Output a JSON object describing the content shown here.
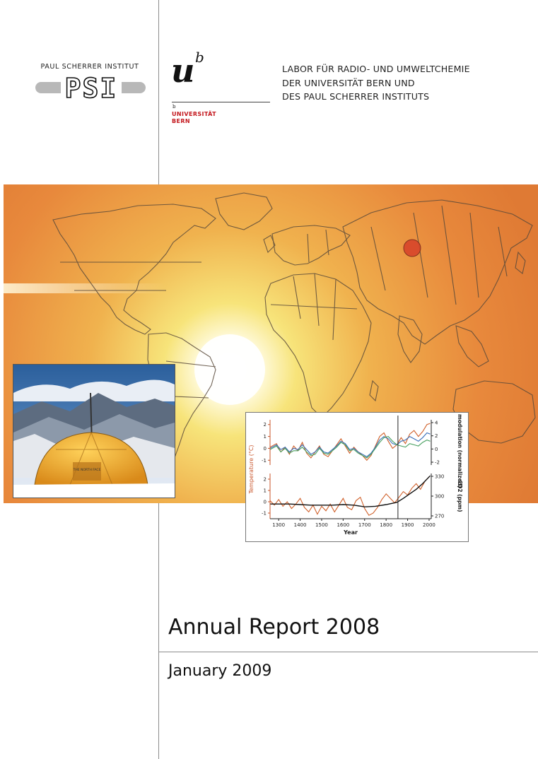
{
  "logos": {
    "psi_name": "PAUL SCHERRER INSTITUT",
    "psi_letters": "PSI",
    "unibern_symbol": "u",
    "unibern_superscript": "b",
    "unibern_small_b": "b",
    "unibern_line1": "UNIVERSITÄT",
    "unibern_line2": "BERN"
  },
  "lab_header": {
    "lines": [
      "LABOR FÜR RADIO- UND UMWELTCHEMIE",
      "DER UNIVERSITÄT BERN UND",
      "DES PAUL SCHERRER INSTITUTS"
    ]
  },
  "cover": {
    "title": "Annual Report 2008",
    "date": "January 2009"
  },
  "photo": {
    "tent_brand": "THE NORTH FACE"
  },
  "colors": {
    "banner_orange": "#e8893c",
    "sun_glow": "#fff6c0",
    "site_marker": "#d8452a",
    "temperature_axis": "#c8542a",
    "series_orange": "#d0602a",
    "series_blue": "#3a6fb8",
    "series_green": "#48a060",
    "series_black": "#111111",
    "uni_red": "#c3161c"
  },
  "chart_data": {
    "type": "line",
    "xlabel": "Year",
    "x_ticks": [
      "1300",
      "1400",
      "1500",
      "1600",
      "1700",
      "1800",
      "1900",
      "2000"
    ],
    "xlim": [
      1260,
      2010
    ],
    "marker_line_year": 1855,
    "top_panel": {
      "left_ticks": [
        "2",
        "1",
        "0",
        "-1"
      ],
      "right_ticks": [
        "4",
        "2",
        "0",
        "-2"
      ],
      "right_label": "Solar modulation (normalized)",
      "ylim": [
        -1.4,
        2.4
      ],
      "series": [
        {
          "color_key": "series_orange",
          "x": [
            1260,
            1290,
            1310,
            1330,
            1350,
            1370,
            1390,
            1410,
            1430,
            1450,
            1470,
            1490,
            1510,
            1530,
            1550,
            1570,
            1590,
            1610,
            1630,
            1650,
            1670,
            1690,
            1710,
            1730,
            1750,
            1770,
            1790,
            1810,
            1830,
            1850,
            1870,
            1890,
            1910,
            1930,
            1950,
            1970,
            1990,
            2005
          ],
          "y": [
            0.1,
            0.4,
            -0.3,
            0.1,
            -0.5,
            0.2,
            -0.2,
            0.5,
            -0.4,
            -0.8,
            -0.3,
            0.2,
            -0.5,
            -0.7,
            -0.2,
            0.3,
            0.8,
            0.2,
            -0.4,
            0.1,
            -0.3,
            -0.6,
            -1.0,
            -0.6,
            0.2,
            1.0,
            1.3,
            0.6,
            0.0,
            0.3,
            0.9,
            0.4,
            1.2,
            1.5,
            1.0,
            1.4,
            2.0,
            2.1
          ]
        },
        {
          "color_key": "series_blue",
          "x": [
            1260,
            1290,
            1310,
            1330,
            1350,
            1370,
            1390,
            1410,
            1430,
            1450,
            1470,
            1490,
            1510,
            1530,
            1550,
            1570,
            1590,
            1610,
            1630,
            1650,
            1670,
            1690,
            1710,
            1730,
            1750,
            1770,
            1790,
            1810,
            1830,
            1850,
            1870,
            1890,
            1910,
            1930,
            1950,
            1970,
            1990,
            2005
          ],
          "y": [
            0.0,
            0.3,
            -0.1,
            0.1,
            -0.3,
            0.0,
            -0.1,
            0.3,
            -0.1,
            -0.5,
            -0.3,
            0.1,
            -0.3,
            -0.4,
            -0.1,
            0.2,
            0.6,
            0.4,
            -0.1,
            0.0,
            -0.3,
            -0.5,
            -0.7,
            -0.4,
            0.1,
            0.7,
            1.0,
            0.8,
            0.4,
            0.3,
            0.6,
            0.7,
            1.0,
            0.8,
            0.6,
            0.9,
            1.3,
            1.2
          ]
        },
        {
          "color_key": "series_green",
          "x": [
            1260,
            1290,
            1310,
            1330,
            1350,
            1370,
            1390,
            1410,
            1430,
            1450,
            1470,
            1490,
            1510,
            1530,
            1550,
            1570,
            1590,
            1610,
            1630,
            1650,
            1670,
            1690,
            1710,
            1730,
            1750,
            1770,
            1790,
            1810,
            1830,
            1850,
            1870,
            1890,
            1910,
            1930,
            1950,
            1970,
            1990,
            2005
          ],
          "y": [
            -0.1,
            0.2,
            -0.3,
            0.0,
            -0.4,
            -0.2,
            -0.2,
            0.1,
            -0.3,
            -0.6,
            -0.5,
            0.0,
            -0.4,
            -0.5,
            -0.2,
            0.1,
            0.5,
            0.3,
            -0.2,
            -0.1,
            -0.4,
            -0.6,
            -0.8,
            -0.5,
            0.0,
            0.5,
            0.9,
            1.0,
            0.6,
            0.3,
            0.2,
            0.1,
            0.4,
            0.3,
            0.2,
            0.5,
            0.7,
            0.6
          ]
        }
      ]
    },
    "bottom_panel": {
      "left_ticks": [
        "2",
        "1",
        "0",
        "-1"
      ],
      "right_ticks": [
        "330",
        "300",
        "270"
      ],
      "right_label": "CO2 (ppm)",
      "ylim": [
        -1.5,
        2.5
      ],
      "series": [
        {
          "color_key": "series_orange",
          "x": [
            1260,
            1280,
            1300,
            1320,
            1340,
            1360,
            1380,
            1400,
            1420,
            1440,
            1460,
            1480,
            1500,
            1520,
            1540,
            1560,
            1580,
            1600,
            1620,
            1640,
            1660,
            1680,
            1700,
            1720,
            1740,
            1760,
            1780,
            1800,
            1820,
            1840,
            1860,
            1880,
            1900,
            1920,
            1940,
            1960,
            1980,
            2000
          ],
          "y": [
            0.1,
            -0.3,
            0.2,
            -0.4,
            0.0,
            -0.6,
            -0.2,
            0.3,
            -0.5,
            -0.9,
            -0.3,
            -1.1,
            -0.4,
            -0.8,
            -0.2,
            -0.9,
            -0.3,
            0.3,
            -0.5,
            -0.7,
            0.1,
            0.4,
            -0.6,
            -1.2,
            -1.0,
            -0.5,
            0.2,
            0.7,
            0.3,
            -0.1,
            0.4,
            0.9,
            0.6,
            1.2,
            1.6,
            1.1,
            1.8,
            2.2
          ]
        },
        {
          "color_key": "series_black",
          "x": [
            1260,
            1300,
            1350,
            1400,
            1450,
            1500,
            1550,
            1600,
            1650,
            1700,
            1750,
            1800,
            1850,
            1880,
            1910,
            1940,
            1970,
            2005
          ],
          "y": [
            -0.2,
            -0.2,
            -0.2,
            -0.25,
            -0.3,
            -0.3,
            -0.3,
            -0.25,
            -0.3,
            -0.45,
            -0.4,
            -0.25,
            -0.05,
            0.3,
            0.7,
            1.1,
            1.6,
            2.3
          ]
        }
      ]
    },
    "left_label": "Temperature (°C)"
  }
}
